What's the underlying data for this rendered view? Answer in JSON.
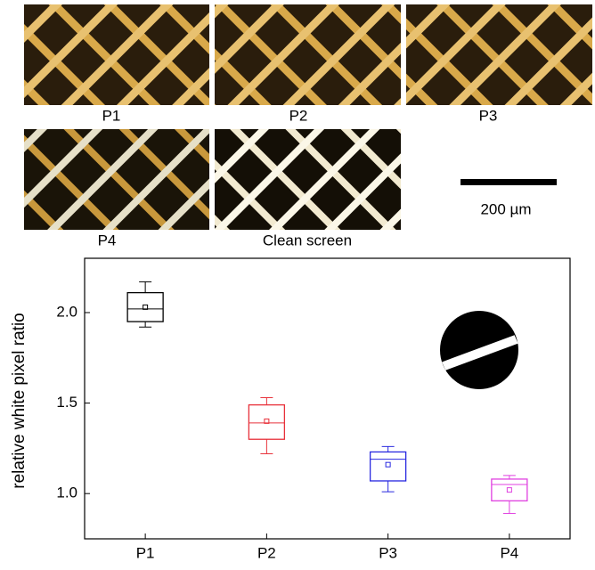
{
  "panels": [
    "P1",
    "P2",
    "P3",
    "P4",
    "Clean screen"
  ],
  "scale_bar": "200 µm",
  "chart_data": {
    "type": "box",
    "y_label": "relative white pixel ratio",
    "categories": [
      "P1",
      "P2",
      "P3",
      "P4"
    ],
    "boxes": [
      {
        "color": "#000000",
        "min": 1.92,
        "q1": 1.95,
        "median": 2.02,
        "mean": 2.03,
        "q3": 2.11,
        "max": 2.17
      },
      {
        "color": "#e8303a",
        "min": 1.22,
        "q1": 1.3,
        "median": 1.39,
        "mean": 1.4,
        "q3": 1.49,
        "max": 1.53
      },
      {
        "color": "#2828e0",
        "min": 1.01,
        "q1": 1.07,
        "median": 1.19,
        "mean": 1.16,
        "q3": 1.23,
        "max": 1.26
      },
      {
        "color": "#e040e0",
        "min": 0.89,
        "q1": 0.96,
        "median": 1.05,
        "mean": 1.02,
        "q3": 1.08,
        "max": 1.1
      }
    ],
    "ylim": [
      0.75,
      2.3
    ],
    "yticks": [
      {
        "value": 1,
        "label": "1.0"
      },
      {
        "value": 1.5,
        "label": "1.5"
      },
      {
        "value": 2,
        "label": "2.0"
      }
    ]
  }
}
